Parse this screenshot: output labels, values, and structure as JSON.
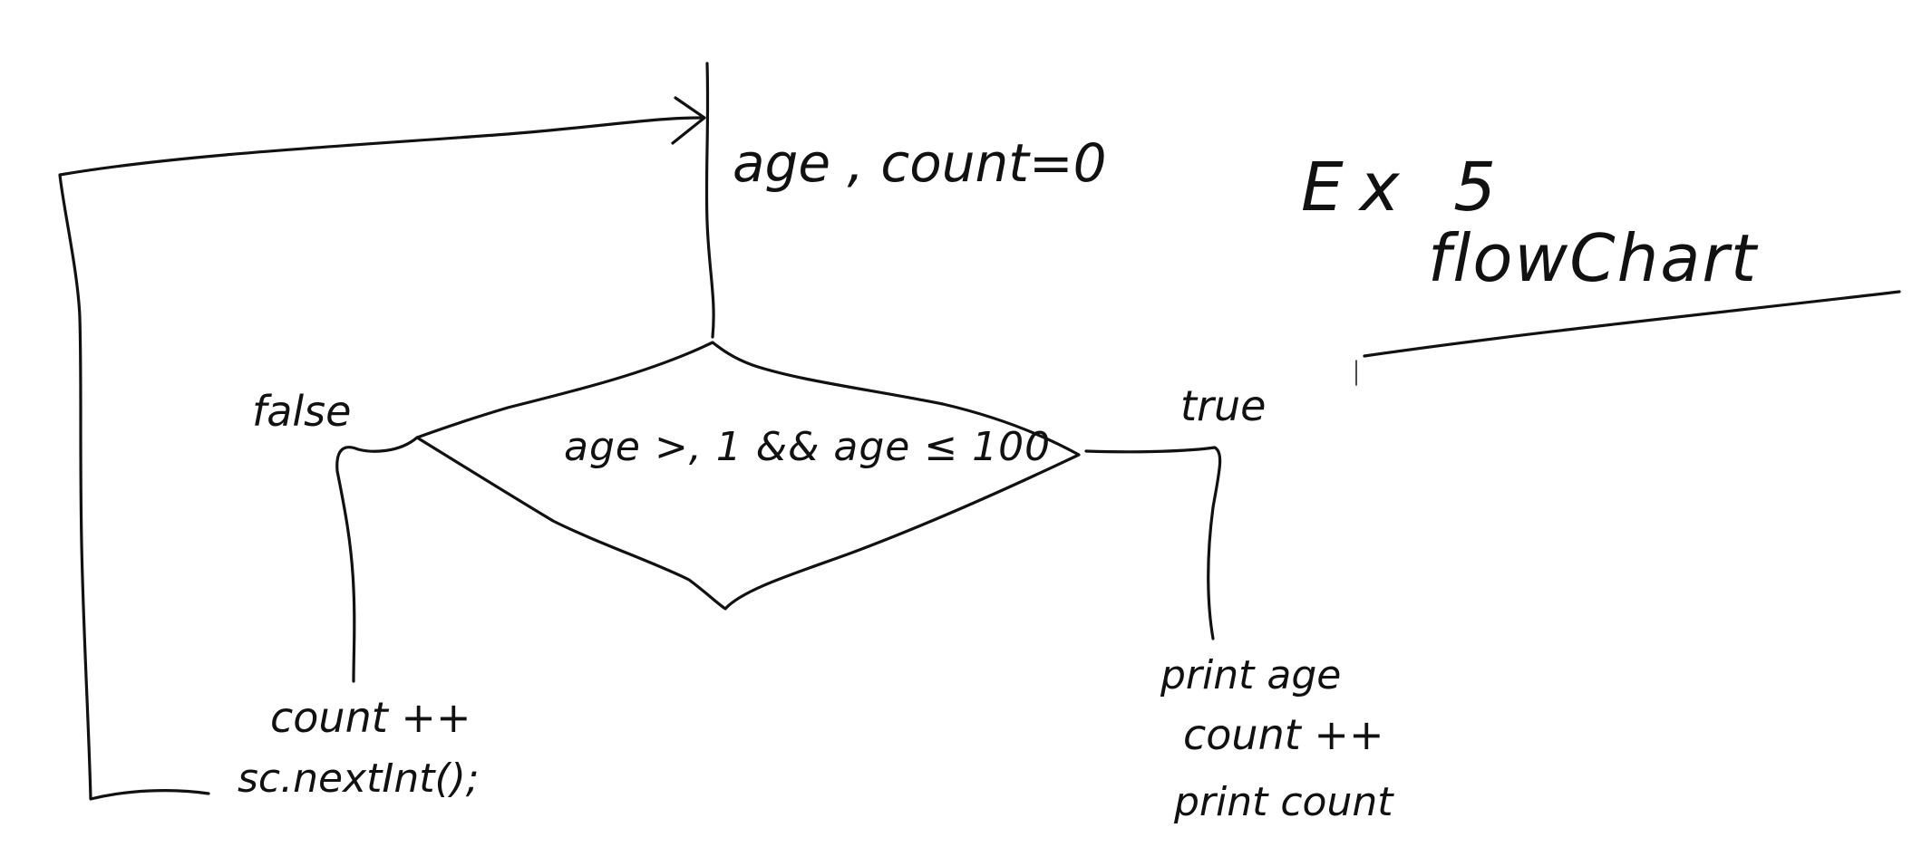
{
  "title": {
    "line1": "Ex 5",
    "line2": "flowChart"
  },
  "init_label": "age , count=0",
  "decision": {
    "condition": "age >, 1 && age ≤ 100"
  },
  "branches": {
    "false_label": "false",
    "true_label": "true"
  },
  "false_block": {
    "line1": "count ++",
    "line2": "sc.nextInt();"
  },
  "true_block": {
    "line1": "print age",
    "line2": "count ++",
    "line3": "print count"
  },
  "colors": {
    "ink": "#111111",
    "background": "#ffffff"
  }
}
